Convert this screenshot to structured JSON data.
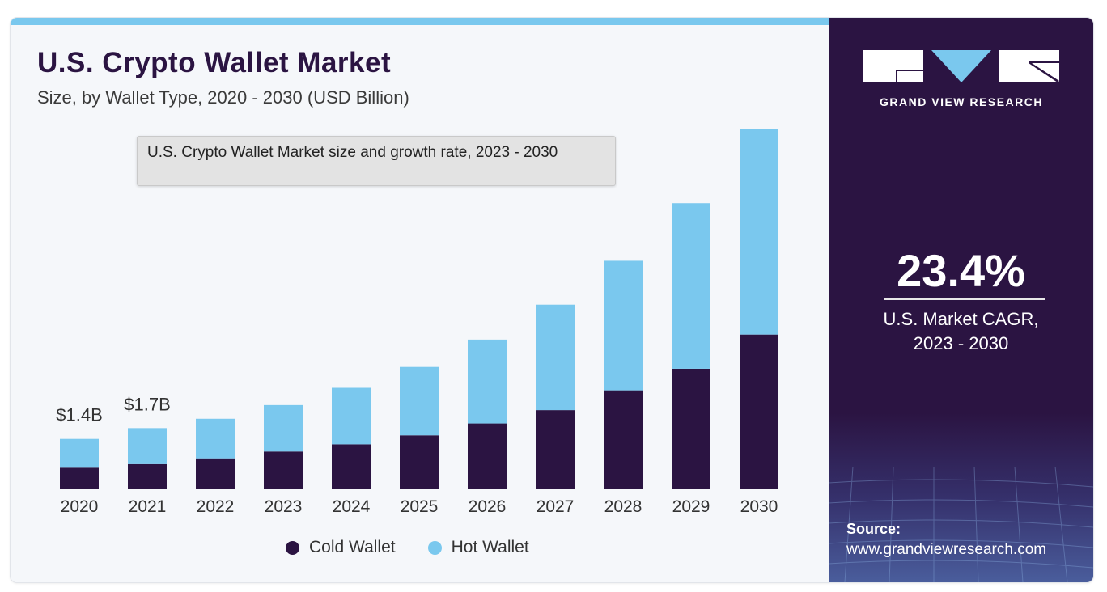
{
  "header": {
    "title": "U.S. Crypto Wallet Market",
    "subtitle": "Size, by Wallet Type, 2020 - 2030 (USD Billion)"
  },
  "tooltip": {
    "text": "U.S. Crypto Wallet Market size and growth rate, 2023 - 2030"
  },
  "chart_data": {
    "type": "bar",
    "stacked": true,
    "categories": [
      "2020",
      "2021",
      "2022",
      "2023",
      "2024",
      "2025",
      "2026",
      "2027",
      "2028",
      "2029",
      "2030"
    ],
    "series": [
      {
        "name": "Cold Wallet",
        "color": "#2b1442",
        "values": [
          0.6,
          0.7,
          0.86,
          1.05,
          1.25,
          1.5,
          1.83,
          2.2,
          2.75,
          3.35,
          4.3
        ]
      },
      {
        "name": "Hot Wallet",
        "color": "#7ac8ee",
        "values": [
          0.8,
          1.0,
          1.1,
          1.29,
          1.57,
          1.9,
          2.33,
          2.93,
          3.6,
          4.6,
          5.72
        ]
      }
    ],
    "data_labels": [
      {
        "category": "2020",
        "text": "$1.4B"
      },
      {
        "category": "2021",
        "text": "$1.7B"
      }
    ],
    "ylim": [
      0,
      10
    ],
    "grid": false,
    "legend_position": "bottom"
  },
  "legend": {
    "items": [
      {
        "label": "Cold Wallet",
        "color": "#2b1442"
      },
      {
        "label": "Hot Wallet",
        "color": "#7ac8ee"
      }
    ]
  },
  "sidebar": {
    "brand": "GRAND VIEW RESEARCH",
    "cagr_value": "23.4%",
    "cagr_label_line1": "U.S. Market CAGR,",
    "cagr_label_line2": "2023 - 2030",
    "source_label": "Source:",
    "source_url": "www.grandviewresearch.com"
  },
  "colors": {
    "accent_light": "#7ac8ee",
    "brand_dark": "#2b1442"
  }
}
